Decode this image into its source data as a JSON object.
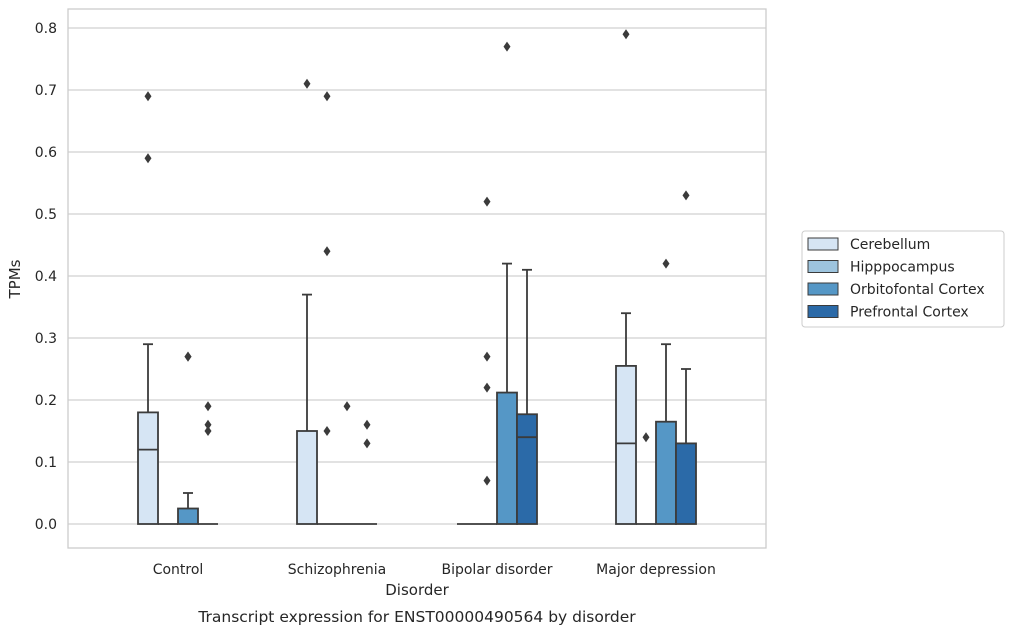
{
  "chart_data": {
    "type": "box",
    "xlabel": "Disorder",
    "ylabel": "TPMs",
    "caption": "Transcript expression for ENST00000490564 by disorder",
    "ylim": [
      -0.04,
      0.83
    ],
    "yticks": [
      0.0,
      0.1,
      0.2,
      0.3,
      0.4,
      0.5,
      0.6,
      0.7,
      0.8
    ],
    "ytick_labels": [
      "0.0",
      "0.1",
      "0.2",
      "0.3",
      "0.4",
      "0.5",
      "0.6",
      "0.7",
      "0.8"
    ],
    "grid": "horizontal",
    "legend_position": "right",
    "categories": [
      "Control",
      "Schizophrenia",
      "Bipolar disorder",
      "Major depression"
    ],
    "series": [
      {
        "name": "Cerebellum",
        "color": "#d6e5f4",
        "boxes": [
          {
            "q1": 0.0,
            "median": 0.12,
            "q3": 0.18,
            "whisker_low": 0.0,
            "whisker_high": 0.29,
            "outliers": [
              0.59,
              0.69
            ]
          },
          {
            "q1": 0.0,
            "median": 0.0,
            "q3": 0.15,
            "whisker_low": 0.0,
            "whisker_high": 0.37,
            "outliers": [
              0.71
            ]
          },
          {
            "q1": 0.0,
            "median": 0.0,
            "q3": 0.0,
            "whisker_low": 0.0,
            "whisker_high": 0.0,
            "outliers": []
          },
          {
            "q1": 0.0,
            "median": 0.13,
            "q3": 0.255,
            "whisker_low": 0.0,
            "whisker_high": 0.34,
            "outliers": [
              0.79
            ]
          }
        ]
      },
      {
        "name": "Hipppocampus",
        "color": "#9dc4de",
        "boxes": [
          {
            "q1": 0.0,
            "median": 0.0,
            "q3": 0.0,
            "whisker_low": 0.0,
            "whisker_high": 0.0,
            "outliers": []
          },
          {
            "q1": 0.0,
            "median": 0.0,
            "q3": 0.0,
            "whisker_low": 0.0,
            "whisker_high": 0.0,
            "outliers": [
              0.15,
              0.44,
              0.69
            ]
          },
          {
            "q1": 0.0,
            "median": 0.0,
            "q3": 0.0,
            "whisker_low": 0.0,
            "whisker_high": 0.0,
            "outliers": [
              0.07,
              0.22,
              0.27,
              0.52
            ]
          },
          {
            "q1": 0.0,
            "median": 0.0,
            "q3": 0.0,
            "whisker_low": 0.0,
            "whisker_high": 0.0,
            "outliers": [
              0.14
            ]
          }
        ]
      },
      {
        "name": "Orbitofontal Cortex",
        "color": "#5597c6",
        "boxes": [
          {
            "q1": 0.0,
            "median": 0.0,
            "q3": 0.025,
            "whisker_low": 0.0,
            "whisker_high": 0.05,
            "outliers": [
              0.27,
              0.27
            ]
          },
          {
            "q1": 0.0,
            "median": 0.0,
            "q3": 0.0,
            "whisker_low": 0.0,
            "whisker_high": 0.0,
            "outliers": [
              0.19
            ]
          },
          {
            "q1": 0.0,
            "median": 0.0,
            "q3": 0.212,
            "whisker_low": 0.0,
            "whisker_high": 0.42,
            "outliers": [
              0.77
            ]
          },
          {
            "q1": 0.0,
            "median": 0.0,
            "q3": 0.165,
            "whisker_low": 0.0,
            "whisker_high": 0.29,
            "outliers": [
              0.42
            ]
          }
        ]
      },
      {
        "name": "Prefrontal Cortex",
        "color": "#2b6aa8",
        "boxes": [
          {
            "q1": 0.0,
            "median": 0.0,
            "q3": 0.0,
            "whisker_low": 0.0,
            "whisker_high": 0.0,
            "outliers": [
              0.15,
              0.16,
              0.19
            ]
          },
          {
            "q1": 0.0,
            "median": 0.0,
            "q3": 0.0,
            "whisker_low": 0.0,
            "whisker_high": 0.0,
            "outliers": [
              0.13,
              0.16
            ]
          },
          {
            "q1": 0.0,
            "median": 0.14,
            "q3": 0.177,
            "whisker_low": 0.0,
            "whisker_high": 0.41,
            "outliers": []
          },
          {
            "q1": 0.0,
            "median": 0.0,
            "q3": 0.13,
            "whisker_low": 0.0,
            "whisker_high": 0.25,
            "outliers": [
              0.53
            ]
          }
        ]
      }
    ]
  }
}
